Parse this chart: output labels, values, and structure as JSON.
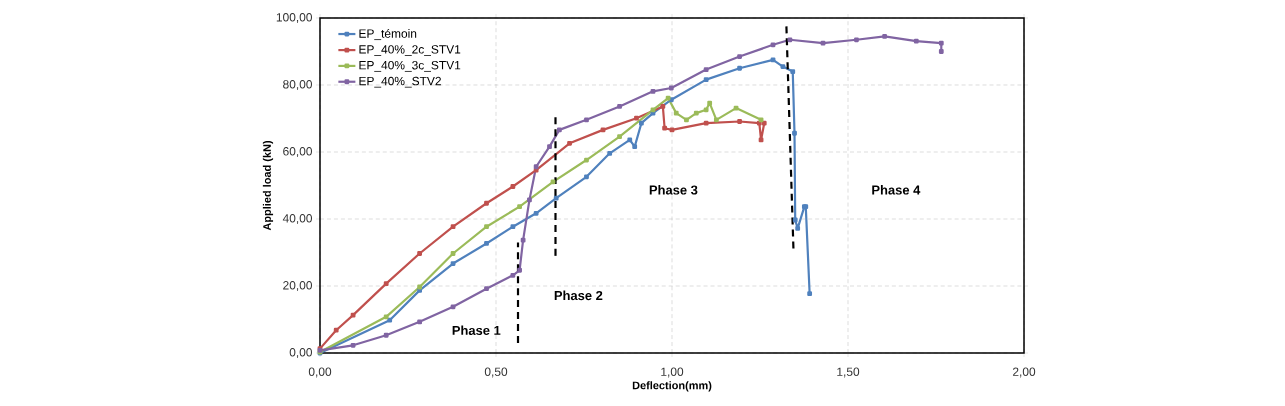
{
  "chart_data": {
    "type": "line",
    "xlabel": "Deflection(mm)",
    "ylabel": "Applied load (kN)",
    "xlim": [
      0,
      2
    ],
    "ylim": [
      0,
      100
    ],
    "xticks": [
      {
        "value": 0,
        "label": "0,00"
      },
      {
        "value": 0.5,
        "label": "0,50"
      },
      {
        "value": 1,
        "label": "1,00"
      },
      {
        "value": 1.5,
        "label": "1,50"
      },
      {
        "value": 2,
        "label": "2,00"
      }
    ],
    "yticks": [
      {
        "value": 0,
        "label": "0,00"
      },
      {
        "value": 20,
        "label": "20,00"
      },
      {
        "value": 40,
        "label": "40,00"
      },
      {
        "value": 60,
        "label": "60,00"
      },
      {
        "value": 80,
        "label": "80,00"
      },
      {
        "value": 100,
        "label": "100,00"
      }
    ],
    "grid": true,
    "legend": "top left",
    "marker": "square",
    "line_style": "solid",
    "series": [
      {
        "name": "EP_témoin",
        "color": "#4f81bd",
        "x": [
          0,
          0.198,
          0.283,
          0.378,
          0.473,
          0.548,
          0.614,
          0.671,
          0.757,
          0.823,
          0.88,
          0.894,
          0.913,
          0.946,
          0.998,
          1.097,
          1.192,
          1.287,
          1.315,
          1.343,
          1.348,
          1.35,
          1.357,
          1.376,
          1.38,
          1.391
        ],
        "values": [
          0,
          9.8,
          18.7,
          26.7,
          32.7,
          37.7,
          41.7,
          46.2,
          52.6,
          59.6,
          63.6,
          61.6,
          68.6,
          71.6,
          75.6,
          81.6,
          85.0,
          87.5,
          85.5,
          84.0,
          65.6,
          39.7,
          37.2,
          43.7,
          43.7,
          17.7
        ]
      },
      {
        "name": "EP_40%_2c_STV1",
        "color": "#c0504d",
        "x": [
          0,
          0.046,
          0.094,
          0.188,
          0.283,
          0.378,
          0.473,
          0.548,
          0.614,
          0.709,
          0.804,
          0.899,
          0.974,
          0.979,
          1.0,
          1.097,
          1.192,
          1.248,
          1.253,
          1.262
        ],
        "values": [
          1.3,
          6.8,
          11.3,
          20.7,
          29.7,
          37.7,
          44.7,
          49.7,
          54.6,
          62.6,
          66.6,
          70.1,
          73.6,
          67.1,
          66.6,
          68.6,
          69.1,
          68.6,
          63.6,
          68.6
        ]
      },
      {
        "name": "EP_40%_3c_STV1",
        "color": "#9bbb59",
        "x": [
          0,
          0.188,
          0.283,
          0.378,
          0.473,
          0.567,
          0.662,
          0.757,
          0.851,
          0.946,
          0.989,
          1.012,
          1.041,
          1.069,
          1.097,
          1.107,
          1.126,
          1.182,
          1.253
        ],
        "values": [
          0.3,
          10.8,
          19.7,
          29.7,
          37.7,
          43.7,
          51.1,
          57.6,
          64.6,
          72.6,
          76.1,
          71.6,
          69.6,
          71.6,
          72.6,
          74.6,
          69.6,
          73.1,
          69.6
        ]
      },
      {
        "name": "EP_40%_STV2",
        "color": "#8064a2",
        "x": [
          0,
          0.094,
          0.188,
          0.283,
          0.378,
          0.473,
          0.548,
          0.567,
          0.577,
          0.595,
          0.614,
          0.652,
          0.68,
          0.757,
          0.851,
          0.946,
          0.998,
          1.097,
          1.192,
          1.287,
          1.335,
          1.429,
          1.524,
          1.604,
          1.694,
          1.765,
          1.765
        ],
        "values": [
          0.8,
          2.3,
          5.3,
          9.3,
          13.8,
          19.2,
          23.2,
          24.7,
          33.7,
          45.7,
          55.6,
          61.6,
          66.6,
          69.6,
          73.6,
          78.1,
          79.1,
          84.6,
          88.5,
          92.0,
          93.5,
          92.5,
          93.5,
          94.5,
          93.1,
          92.5,
          90.0
        ]
      },
      {
        "color": "#000000",
        "line_style": "dashed",
        "marker": "none",
        "x": [
          0.5625,
          0.5625
        ],
        "values": [
          3,
          33
        ]
      },
      {
        "color": "#000000",
        "line_style": "dashed",
        "marker": "none",
        "x": [
          0.669,
          0.669
        ],
        "values": [
          29,
          71
        ]
      },
      {
        "color": "#000000",
        "line_style": "dashed",
        "marker": "none",
        "x": [
          1.325,
          1.345
        ],
        "values": [
          97.5,
          31
        ]
      }
    ],
    "annotations": [
      "Phase 1",
      "Phase 2",
      "Phase 3",
      "Phase 4"
    ]
  }
}
